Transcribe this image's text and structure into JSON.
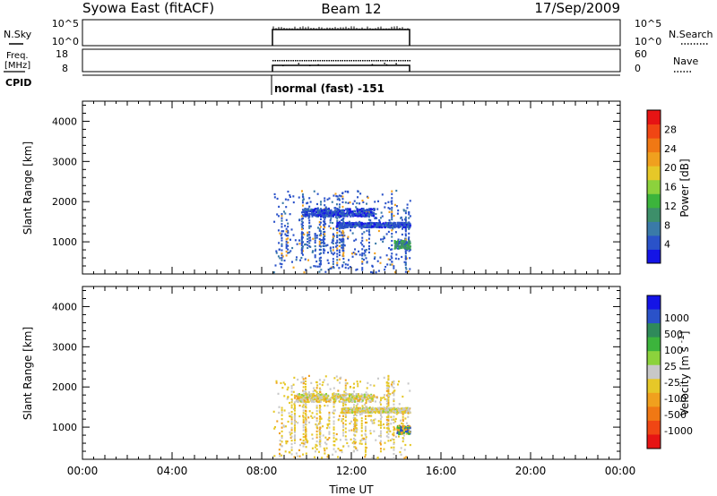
{
  "header": {
    "title": "Syowa East (fitACF)",
    "beam": "Beam 12",
    "date": "17/Sep/2009"
  },
  "mini_panels": {
    "nsky": {
      "label": "N.Sky",
      "left_ticks": [
        "10^5",
        "10^0"
      ],
      "right_ticks": [
        "10^5",
        "10^0"
      ],
      "right_label": "N.Search"
    },
    "freq": {
      "label_line1": "Freq.",
      "label_line2": "[MHz]",
      "left_ticks": [
        "18",
        "8"
      ],
      "right_ticks": [
        "60",
        "0"
      ],
      "right_label": "Nave"
    },
    "cpid": {
      "label": "CPID",
      "mode_text": "normal (fast) -151"
    }
  },
  "chart_data": [
    {
      "type": "scatter",
      "panel": "power",
      "ylabel": "Slant Range [km]",
      "ylim": [
        200,
        4500
      ],
      "yticks": [
        1000,
        2000,
        3000,
        4000
      ],
      "xlim_hours": [
        0,
        24
      ],
      "data_window_hours": [
        8.5,
        14.6
      ],
      "colorbar": {
        "label": "Power [dB]",
        "ticks": [
          "4",
          "8",
          "12",
          "16",
          "20",
          "24",
          "28"
        ],
        "colors": [
          "#1414e6",
          "#2a52c9",
          "#3a7aa8",
          "#3d8f6a",
          "#3cb43c",
          "#8cd23c",
          "#e6c828",
          "#f0a01e",
          "#f07814",
          "#f04614",
          "#e61414"
        ]
      },
      "echo_bands": [
        {
          "range_km": [
            1650,
            1850
          ],
          "t_hours": [
            9.8,
            13.0
          ],
          "dominant": "low power (blue)"
        },
        {
          "range_km": [
            1380,
            1500
          ],
          "t_hours": [
            11.3,
            14.6
          ],
          "dominant": "low power (blue)"
        },
        {
          "range_km": [
            850,
            1050
          ],
          "t_hours": [
            13.9,
            14.6
          ],
          "dominant": "moderate power (green)"
        }
      ]
    },
    {
      "type": "scatter",
      "panel": "velocity",
      "ylabel": "Slant Range [km]",
      "ylim": [
        200,
        4500
      ],
      "yticks": [
        1000,
        2000,
        3000,
        4000
      ],
      "xlim_hours": [
        0,
        24
      ],
      "data_window_hours": [
        8.5,
        14.6
      ],
      "colorbar": {
        "label": "Velocity [m s^-1]",
        "ticks": [
          "1000",
          "500",
          "100",
          "25",
          "-25",
          "-100",
          "-500",
          "-1000"
        ],
        "colors": [
          "#1414e6",
          "#2a52c9",
          "#2f8a5a",
          "#3cb43c",
          "#8cd23c",
          "#c8c8c8",
          "#e6c828",
          "#f0a01e",
          "#f07814",
          "#f04614",
          "#e61414"
        ]
      },
      "echo_bands": [
        {
          "range_km": [
            1650,
            1850
          ],
          "t_hours": [
            9.5,
            13.0
          ],
          "dominant": "near zero (grey) and slightly negative (yellow)"
        },
        {
          "range_km": [
            1380,
            1500
          ],
          "t_hours": [
            11.5,
            14.6
          ],
          "dominant": "near zero (grey)"
        },
        {
          "range_km": [
            850,
            1050
          ],
          "t_hours": [
            14.0,
            14.6
          ],
          "dominant": "negative (orange/yellow) and positive (green)"
        }
      ]
    }
  ],
  "x_axis": {
    "label": "Time UT",
    "ticks": [
      "00:00",
      "04:00",
      "08:00",
      "12:00",
      "16:00",
      "20:00",
      "00:00"
    ]
  }
}
